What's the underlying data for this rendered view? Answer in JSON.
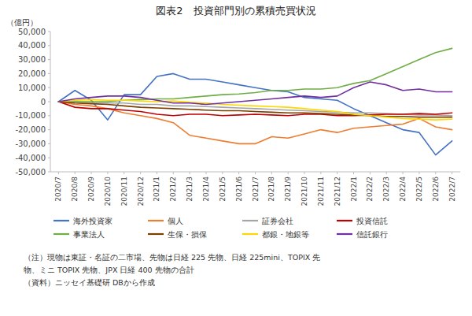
{
  "chart_data": {
    "type": "line",
    "title": "図表2　投資部門別の累積売買状況",
    "y_label": "（億円）",
    "annotations": [
      "（注）現物は東証・名証の二市場、先物は日経 225 先物、日経 225mini、TOPIX 先",
      "物、ミニ TOPIX 先物、JPX 日経 400 先物の合計",
      "（資料）ニッセイ基礎研 DBから作成"
    ],
    "categories": [
      "2020/7",
      "2020/8",
      "2020/9",
      "2020/10",
      "2020/11",
      "2020/12",
      "2021/1",
      "2021/2",
      "2021/3",
      "2021/4",
      "2021/5",
      "2021/6",
      "2021/7",
      "2021/8",
      "2021/9",
      "2021/10",
      "2021/11",
      "2021/12",
      "2022/1",
      "2022/2",
      "2022/3",
      "2022/4",
      "2022/5",
      "2022/6",
      "2022/7"
    ],
    "series": [
      {
        "name": "海外投資家",
        "color": "#4472C4",
        "values": [
          0,
          8000,
          1000,
          -13000,
          5000,
          5000,
          18000,
          20000,
          16000,
          16000,
          14000,
          12000,
          10000,
          8000,
          7000,
          3000,
          2000,
          1000,
          -5000,
          -10000,
          -15000,
          -20000,
          -22000,
          -38000,
          -28000
        ]
      },
      {
        "name": "個人",
        "color": "#ED7D31",
        "values": [
          0,
          -2000,
          -3000,
          -5000,
          -8000,
          -10000,
          -12000,
          -15000,
          -24000,
          -26000,
          -28000,
          -30000,
          -30000,
          -25000,
          -26000,
          -23000,
          -20000,
          -22000,
          -19000,
          -18000,
          -17000,
          -16000,
          -12000,
          -18000,
          -20000
        ]
      },
      {
        "name": "証券会社",
        "color": "#A5A5A5",
        "values": [
          0,
          0,
          -1000,
          -1000,
          -1000,
          -2000,
          -2000,
          -3000,
          -3000,
          -3500,
          -4000,
          -4500,
          -5000,
          -5500,
          -6000,
          -6500,
          -7000,
          -7500,
          -8000,
          -8000,
          -8500,
          -9000,
          -9500,
          -9500,
          -10000
        ]
      },
      {
        "name": "投資信託",
        "color": "#C00000",
        "values": [
          0,
          -4000,
          -5000,
          -5000,
          -6000,
          -7000,
          -9000,
          -10000,
          -9000,
          -9000,
          -10000,
          -9500,
          -9000,
          -9500,
          -10000,
          -9000,
          -9000,
          -10000,
          -10000,
          -9500,
          -9000,
          -9000,
          -8500,
          -9000,
          -8000
        ]
      },
      {
        "name": "事業法人",
        "color": "#70AD47",
        "values": [
          0,
          0,
          0,
          0,
          1000,
          1500,
          2000,
          2000,
          3000,
          4000,
          5000,
          5500,
          6500,
          8000,
          8000,
          9000,
          9000,
          10000,
          13000,
          15000,
          20000,
          25000,
          30000,
          35000,
          38000
        ]
      },
      {
        "name": "生保・損保",
        "color": "#7B3F00",
        "values": [
          0,
          -1000,
          -1500,
          -2000,
          -3000,
          -4000,
          -4500,
          -5000,
          -5500,
          -6000,
          -6500,
          -6500,
          -7000,
          -7500,
          -8000,
          -8000,
          -8500,
          -9000,
          -9500,
          -10000,
          -10500,
          -10500,
          -11000,
          -11000,
          -11000
        ]
      },
      {
        "name": "都銀・地銀等",
        "color": "#FFD700",
        "values": [
          0,
          1000,
          1500,
          1000,
          1000,
          500,
          0,
          500,
          -500,
          -1000,
          -2000,
          -2500,
          -3000,
          -3500,
          -4000,
          -5000,
          -6000,
          -7000,
          -9000,
          -10000,
          -11000,
          -12000,
          -12500,
          -13000,
          -12500
        ]
      },
      {
        "name": "信託銀行",
        "color": "#7030A0",
        "values": [
          0,
          2000,
          3000,
          4000,
          4000,
          3000,
          1000,
          -1000,
          -1000,
          -2000,
          -1000,
          0,
          1000,
          2000,
          3000,
          4000,
          3000,
          4000,
          10000,
          14000,
          12000,
          8000,
          9000,
          7000,
          7000
        ]
      }
    ],
    "ylim": [
      -50000,
      50000
    ],
    "yticks": [
      {
        "value": -50000,
        "label": "-50,000"
      },
      {
        "value": -40000,
        "label": "-40,000"
      },
      {
        "value": -30000,
        "label": "-30,000"
      },
      {
        "value": -20000,
        "label": "-20,000"
      },
      {
        "value": -10000,
        "label": "-10,000"
      },
      0,
      {
        "value": 10000,
        "label": "10,000"
      },
      {
        "value": 20000,
        "label": "20,000"
      },
      {
        "value": 30000,
        "label": "30,000"
      },
      {
        "value": 40000,
        "label": "40,000"
      },
      {
        "value": 50000,
        "label": "50,000"
      }
    ],
    "grid": false,
    "legend": "bottom"
  }
}
